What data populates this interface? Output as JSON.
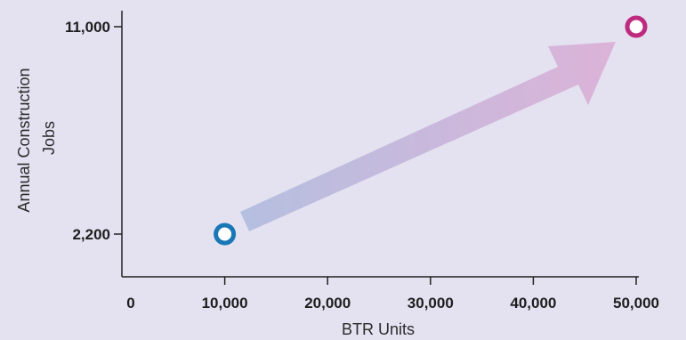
{
  "chart_data": {
    "type": "scatter",
    "xlabel": "BTR Units",
    "ylabel_lines": [
      "Annual Construction",
      "Jobs"
    ],
    "xlim": [
      0,
      50000
    ],
    "x_ticks": [
      {
        "value": 0,
        "label": "0"
      },
      {
        "value": 10000,
        "label": "10,000"
      },
      {
        "value": 20000,
        "label": "20,000"
      },
      {
        "value": 30000,
        "label": "30,000"
      },
      {
        "value": 40000,
        "label": "40,000"
      },
      {
        "value": 50000,
        "label": "50,000"
      }
    ],
    "y_ticks": [
      {
        "value": 2200,
        "label": "2,200"
      },
      {
        "value": 11000,
        "label": "11,000"
      }
    ],
    "points": [
      {
        "x": 10000,
        "y": 2200,
        "color": "#1a77b5"
      },
      {
        "x": 50000,
        "y": 11000,
        "color": "#be2a7e"
      }
    ],
    "arrow_colors": [
      "#b5bfe0",
      "#dcb3d8"
    ],
    "grid": false
  }
}
